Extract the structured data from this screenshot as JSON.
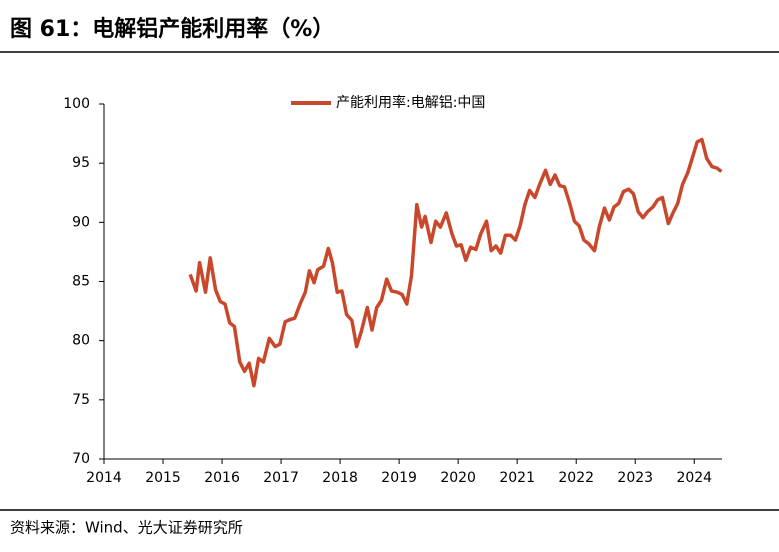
{
  "chart_data": {
    "type": "line",
    "title": "图 61：电解铝产能利用率（%）",
    "source": "资料来源：Wind、光大证券研究所",
    "x": [
      2015.46,
      2015.56,
      2015.62,
      2015.72,
      2015.8,
      2015.89,
      2015.97,
      2016.05,
      2016.13,
      2016.21,
      2016.3,
      2016.38,
      2016.46,
      2016.54,
      2016.62,
      2016.7,
      2016.8,
      2016.9,
      2016.98,
      2017.07,
      2017.16,
      2017.23,
      2017.33,
      2017.41,
      2017.48,
      2017.56,
      2017.62,
      2017.72,
      2017.8,
      2017.87,
      2017.95,
      2018.03,
      2018.11,
      2018.2,
      2018.28,
      2018.36,
      2018.46,
      2018.54,
      2018.62,
      2018.7,
      2018.79,
      2018.87,
      2018.97,
      2019.05,
      2019.13,
      2019.21,
      2019.3,
      2019.38,
      2019.44,
      2019.54,
      2019.62,
      2019.7,
      2019.8,
      2019.89,
      2019.97,
      2020.05,
      2020.13,
      2020.21,
      2020.3,
      2020.38,
      2020.48,
      2020.56,
      2020.64,
      2020.72,
      2020.8,
      2020.89,
      2020.97,
      2021.05,
      2021.13,
      2021.21,
      2021.3,
      2021.38,
      2021.48,
      2021.56,
      2021.64,
      2021.72,
      2021.8,
      2021.89,
      2021.97,
      2022.05,
      2022.13,
      2022.21,
      2022.31,
      2022.39,
      2022.48,
      2022.56,
      2022.64,
      2022.72,
      2022.8,
      2022.89,
      2022.97,
      2023.05,
      2023.13,
      2023.21,
      2023.3,
      2023.38,
      2023.46,
      2023.56,
      2023.64,
      2023.72,
      2023.8,
      2023.89,
      2023.97,
      2024.05,
      2024.13,
      2024.21,
      2024.3,
      2024.38,
      2024.46
    ],
    "series": [
      {
        "name": "产能利用率:电解铝:中国",
        "color": "#c9482b",
        "values": [
          85.6,
          84.2,
          86.6,
          84.1,
          87.0,
          84.3,
          83.3,
          83.1,
          81.5,
          81.2,
          78.2,
          77.4,
          78.1,
          76.2,
          78.5,
          78.2,
          80.2,
          79.5,
          79.7,
          81.6,
          81.8,
          81.9,
          83.2,
          84.1,
          85.9,
          84.9,
          86.0,
          86.3,
          87.8,
          86.6,
          84.1,
          84.2,
          82.2,
          81.7,
          79.5,
          80.8,
          82.8,
          80.9,
          82.8,
          83.4,
          85.2,
          84.2,
          84.1,
          83.9,
          83.1,
          85.5,
          91.5,
          89.6,
          90.5,
          88.3,
          90.1,
          89.6,
          90.8,
          89.1,
          88.0,
          88.1,
          86.8,
          87.9,
          87.7,
          89.0,
          90.1,
          87.6,
          88.0,
          87.4,
          88.9,
          88.9,
          88.5,
          89.7,
          91.5,
          92.7,
          92.1,
          93.2,
          94.4,
          93.2,
          94.0,
          93.1,
          93.0,
          91.6,
          90.1,
          89.7,
          88.5,
          88.2,
          87.6,
          89.6,
          91.2,
          90.2,
          91.3,
          91.6,
          92.6,
          92.8,
          92.4,
          90.9,
          90.4,
          90.9,
          91.3,
          91.9,
          92.1,
          89.9,
          90.8,
          91.6,
          93.2,
          94.2,
          95.5,
          96.8,
          97.0,
          95.4,
          94.7,
          94.6,
          94.3
        ]
      }
    ],
    "xlim": [
      2014,
      2024.47
    ],
    "xticks": [
      2014,
      2015,
      2016,
      2017,
      2018,
      2019,
      2020,
      2021,
      2022,
      2023,
      2024
    ],
    "ylim": [
      70,
      100
    ],
    "yticks": [
      70,
      75,
      80,
      85,
      90,
      95,
      100
    ],
    "legend": "top"
  }
}
